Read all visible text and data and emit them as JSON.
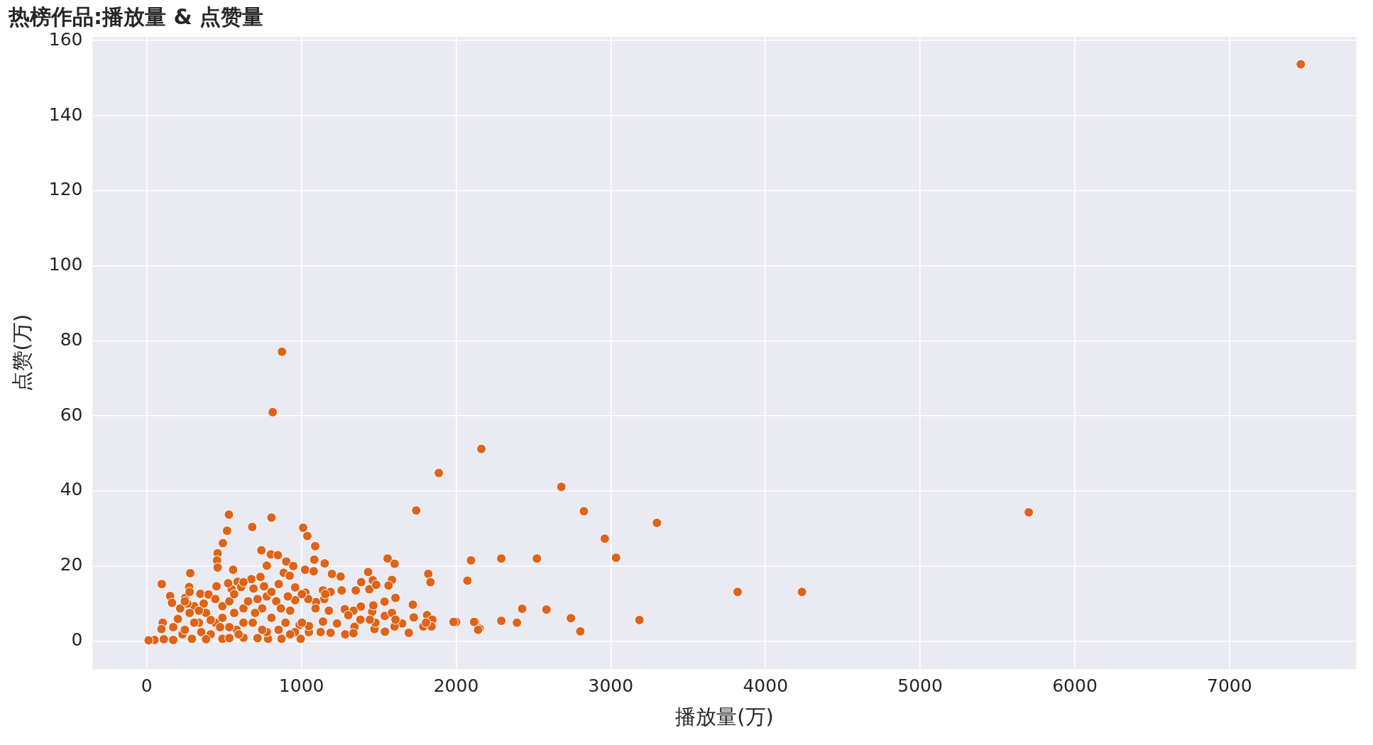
{
  "chart_data": {
    "type": "scatter",
    "title": "热榜作品:播放量 & 点赞量",
    "xlabel": "播放量(万)",
    "ylabel": "点赞(万)",
    "xlim": [
      -350,
      7820
    ],
    "xticks": [
      0,
      1000,
      2000,
      3000,
      4000,
      5000,
      6000,
      7000
    ],
    "ylim": [
      -7.5,
      161
    ],
    "yticks": [
      0,
      20,
      40,
      60,
      80,
      100,
      120,
      140,
      160
    ],
    "grid": true,
    "legend": false,
    "marker": "circle",
    "series": [
      {
        "color": "#dd6418",
        "x": [
          7461,
          5702,
          4236,
          3820,
          3298,
          3185,
          3034,
          2961,
          2826,
          2803,
          2742,
          2680,
          2584,
          2522,
          2427,
          2393,
          2292,
          2292,
          2163,
          2152,
          2124,
          2096,
          2073,
          2000,
          1888,
          1742,
          874,
          814,
          531,
          806,
          682,
          1011,
          519,
          1038,
          492,
          1089,
          741,
          458,
          802,
          847,
          454,
          1083,
          1557,
          1602,
          902,
          947,
          1150,
          458,
          776,
          281,
          558,
          1024,
          1079,
          1197,
          1253,
          1431,
          1820,
          1834,
          885,
          924,
          97,
          274,
          676,
          735,
          587,
          1386,
          1461,
          1585,
          1563,
          151,
          248,
          163,
          346,
          399,
          451,
          549,
          690,
          758,
          853,
          959,
          1026,
          1139,
          1188,
          1260,
          1351,
          1439,
          1483,
          1608,
          1537,
          1720,
          1726,
          1812,
          1846,
          1788,
          1841,
          1983,
          2116,
          2142,
          1694,
          1651,
          1602,
          1540,
          1472,
          1478,
          1457,
          1465,
          1384,
          1336,
          1280,
          1303,
          1381,
          1442,
          1539,
          1585,
          1608,
          1343,
          1283,
          1336,
          1230,
          1188,
          1124,
          1177,
          1147,
          1154,
          1094,
          1048,
          1048,
          1139,
          1091,
          1044,
          1003,
          959,
          988,
          995,
          871,
          784,
          625,
          489,
          292,
          171,
          50,
          12,
          110,
          231,
          103,
          95,
          171,
          216,
          201,
          307,
          368,
          277,
          337,
          383,
          413,
          443,
          489,
          534,
          489,
          565,
          581,
          625,
          655,
          716,
          685,
          746,
          776,
          806,
          837,
          867,
          927,
          912,
          897,
          806,
          776,
          746,
          852,
          958,
          1003,
          927,
          534,
          625,
          700,
          474,
          352,
          307,
          246,
          383,
          534,
          716,
          594,
          413,
          337,
          262,
          443,
          565,
          610,
          526,
          625,
          277,
          246,
          1805
        ],
        "values": [
          153.7,
          34.3,
          13.1,
          13.1,
          31.5,
          5.6,
          22.2,
          27.3,
          34.6,
          2.6,
          6.1,
          41.1,
          8.4,
          22.0,
          8.6,
          4.9,
          5.4,
          22.0,
          51.2,
          3.3,
          5.1,
          21.5,
          16.1,
          5.1,
          44.8,
          34.8,
          77.1,
          61,
          33.7,
          32.9,
          30.4,
          30.2,
          29.4,
          28.0,
          26.1,
          25.3,
          24.2,
          23.4,
          23.1,
          22.9,
          21.5,
          21.7,
          22.0,
          20.6,
          21.2,
          20.0,
          20.7,
          19.6,
          20.1,
          18.1,
          19.0,
          19.0,
          18.6,
          17.9,
          17.2,
          18.4,
          17.9,
          15.7,
          18.2,
          17.4,
          15.2,
          14.4,
          16.5,
          17.1,
          15.8,
          15.7,
          16.2,
          16.3,
          14.8,
          12.0,
          11.5,
          10.2,
          12.6,
          12.4,
          14.6,
          13.8,
          14.0,
          14.6,
          15.2,
          14.3,
          12.9,
          13.5,
          13.1,
          13.5,
          13.5,
          13.8,
          15.0,
          11.5,
          10.5,
          9.7,
          6.3,
          6.9,
          5.7,
          3.9,
          3.9,
          5.1,
          5.1,
          3.0,
          2.2,
          4.7,
          3.9,
          2.5,
          3.2,
          4.9,
          7.8,
          9.5,
          9.2,
          8.1,
          8.5,
          6.9,
          5.7,
          5.7,
          6.7,
          7.5,
          5.7,
          3.8,
          1.8,
          2.1,
          4.7,
          2.2,
          2.4,
          8.1,
          11.2,
          12.5,
          10.4,
          2.4,
          4.0,
          5.2,
          8.7,
          11.2,
          12.5,
          10.9,
          4.3,
          0.6,
          0.6,
          0.6,
          0.9,
          0.6,
          0.6,
          0.3,
          0.3,
          0.2,
          0.5,
          1.8,
          4.9,
          3.2,
          3.7,
          8.7,
          5.9,
          9.3,
          10.0,
          7.5,
          4.9,
          7.5,
          1.8,
          4.9,
          9.3,
          10.6,
          6.2,
          7.5,
          3.0,
          8.7,
          10.6,
          11.2,
          4.9,
          8.7,
          11.9,
          13.1,
          10.6,
          8.7,
          8.1,
          11.9,
          4.9,
          6.2,
          2.4,
          3.0,
          3.0,
          2.4,
          4.9,
          1.8,
          3.7,
          4.9,
          7.5,
          3.7,
          2.4,
          4.9,
          3.0,
          0.5,
          0.8,
          0.8,
          1.8,
          5.6,
          8.1,
          10.0,
          11.2,
          12.5,
          14.4,
          15.4,
          15.7,
          13.1,
          10.6,
          4.9
        ]
      }
    ]
  }
}
